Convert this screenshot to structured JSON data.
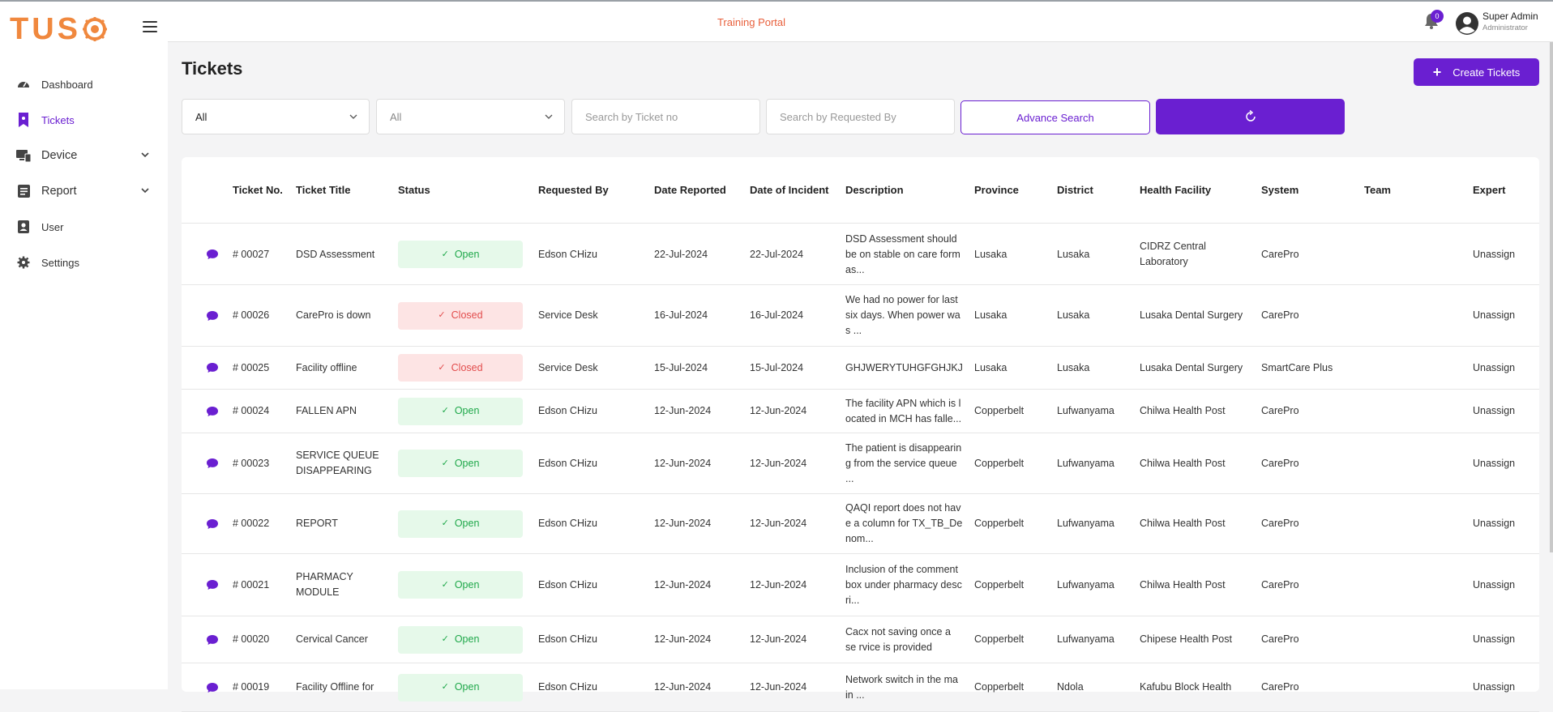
{
  "sidebar": {
    "logo_text": "TUS",
    "items": [
      {
        "label": "Dashboard",
        "icon": "dashboard-icon"
      },
      {
        "label": "Tickets",
        "icon": "ticket-icon"
      },
      {
        "label": "Device",
        "icon": "device-icon"
      },
      {
        "label": "Report",
        "icon": "report-icon"
      },
      {
        "label": "User",
        "icon": "user-icon"
      },
      {
        "label": "Settings",
        "icon": "gear-icon"
      }
    ]
  },
  "topbar": {
    "portal_title": "Training Portal",
    "notification_count": "0",
    "user_name": "Super Admin",
    "user_role": "Administrator"
  },
  "page": {
    "title": "Tickets",
    "create_label": "Create Tickets"
  },
  "filters": {
    "select1_value": "All",
    "select2_value": "All",
    "ticket_placeholder": "Search by Ticket no",
    "requested_placeholder": "Search by Requested By",
    "advance_label": "Advance Search"
  },
  "colors": {
    "accent": "#6a1fd1",
    "logo": "#f0883e",
    "portal_title": "#e8603c",
    "open_bg": "#e6f9ea",
    "open_fg": "#1fa84a",
    "closed_bg": "#fde4e4",
    "closed_fg": "#e24c4c"
  },
  "table": {
    "headers": [
      "Ticket No.",
      "Ticket Title",
      "Status",
      "Requested By",
      "Date Reported",
      "Date of Incident",
      "Description",
      "Province",
      "District",
      "Health Facility",
      "System",
      "Team",
      "Expert"
    ],
    "rows": [
      {
        "no": "# 00027",
        "title": "DSD Assessment",
        "status": "Open",
        "by": "Edson CHizu",
        "reported": "22-Jul-2024",
        "incident": "22-Jul-2024",
        "desc": "DSD Assessment should be on stable on care form as...",
        "province": "Lusaka",
        "district": "Lusaka",
        "facility": "CIDRZ Central Laboratory",
        "system": "CarePro",
        "team": "",
        "expert": "Unassign"
      },
      {
        "no": "# 00026",
        "title": "CarePro is down",
        "status": "Closed",
        "by": "Service Desk",
        "reported": "16-Jul-2024",
        "incident": "16-Jul-2024",
        "desc": "We had no power for last six days. When power wa s ...",
        "province": "Lusaka",
        "district": "Lusaka",
        "facility": "Lusaka Dental Surgery",
        "system": "CarePro",
        "team": "",
        "expert": "Unassign"
      },
      {
        "no": "# 00025",
        "title": "Facility offline",
        "status": "Closed",
        "by": "Service Desk",
        "reported": "15-Jul-2024",
        "incident": "15-Jul-2024",
        "desc": "GHJWERYTUHGFGHJKJ",
        "province": "Lusaka",
        "district": "Lusaka",
        "facility": "Lusaka Dental Surgery",
        "system": "SmartCare Plus",
        "team": "",
        "expert": "Unassign"
      },
      {
        "no": "# 00024",
        "title": "FALLEN APN",
        "status": "Open",
        "by": "Edson CHizu",
        "reported": "12-Jun-2024",
        "incident": "12-Jun-2024",
        "desc": "The facility APN which is l ocated in MCH has falle...",
        "province": "Copperbelt",
        "district": "Lufwanyama",
        "facility": "Chilwa Health Post",
        "system": "CarePro",
        "team": "",
        "expert": "Unassign"
      },
      {
        "no": "# 00023",
        "title": "SERVICE QUEUE DISAPPEARING",
        "status": "Open",
        "by": "Edson CHizu",
        "reported": "12-Jun-2024",
        "incident": "12-Jun-2024",
        "desc": "The patient is disappearin g from the service queue ...",
        "province": "Copperbelt",
        "district": "Lufwanyama",
        "facility": "Chilwa Health Post",
        "system": "CarePro",
        "team": "",
        "expert": "Unassign"
      },
      {
        "no": "# 00022",
        "title": "REPORT",
        "status": "Open",
        "by": "Edson CHizu",
        "reported": "12-Jun-2024",
        "incident": "12-Jun-2024",
        "desc": "QAQI report does not hav e a column for TX_TB_De nom...",
        "province": "Copperbelt",
        "district": "Lufwanyama",
        "facility": "Chilwa Health Post",
        "system": "CarePro",
        "team": "",
        "expert": "Unassign"
      },
      {
        "no": "# 00021",
        "title": "PHARMACY MODULE",
        "status": "Open",
        "by": "Edson CHizu",
        "reported": "12-Jun-2024",
        "incident": "12-Jun-2024",
        "desc": "Inclusion of the comment box under pharmacy desc ri...",
        "province": "Copperbelt",
        "district": "Lufwanyama",
        "facility": "Chilwa Health Post",
        "system": "CarePro",
        "team": "",
        "expert": "Unassign"
      },
      {
        "no": "# 00020",
        "title": "Cervical Cancer",
        "status": "Open",
        "by": "Edson CHizu",
        "reported": "12-Jun-2024",
        "incident": "12-Jun-2024",
        "desc": "Cacx not saving once a se rvice is provided",
        "province": "Copperbelt",
        "district": "Lufwanyama",
        "facility": "Chipese Health Post",
        "system": "CarePro",
        "team": "",
        "expert": "Unassign"
      },
      {
        "no": "# 00019",
        "title": "Facility Offline for",
        "status": "Open",
        "by": "Edson CHizu",
        "reported": "12-Jun-2024",
        "incident": "12-Jun-2024",
        "desc": "Network switch in the ma in ...",
        "province": "Copperbelt",
        "district": "Ndola",
        "facility": "Kafubu Block Health",
        "system": "CarePro",
        "team": "",
        "expert": "Unassign"
      }
    ]
  }
}
